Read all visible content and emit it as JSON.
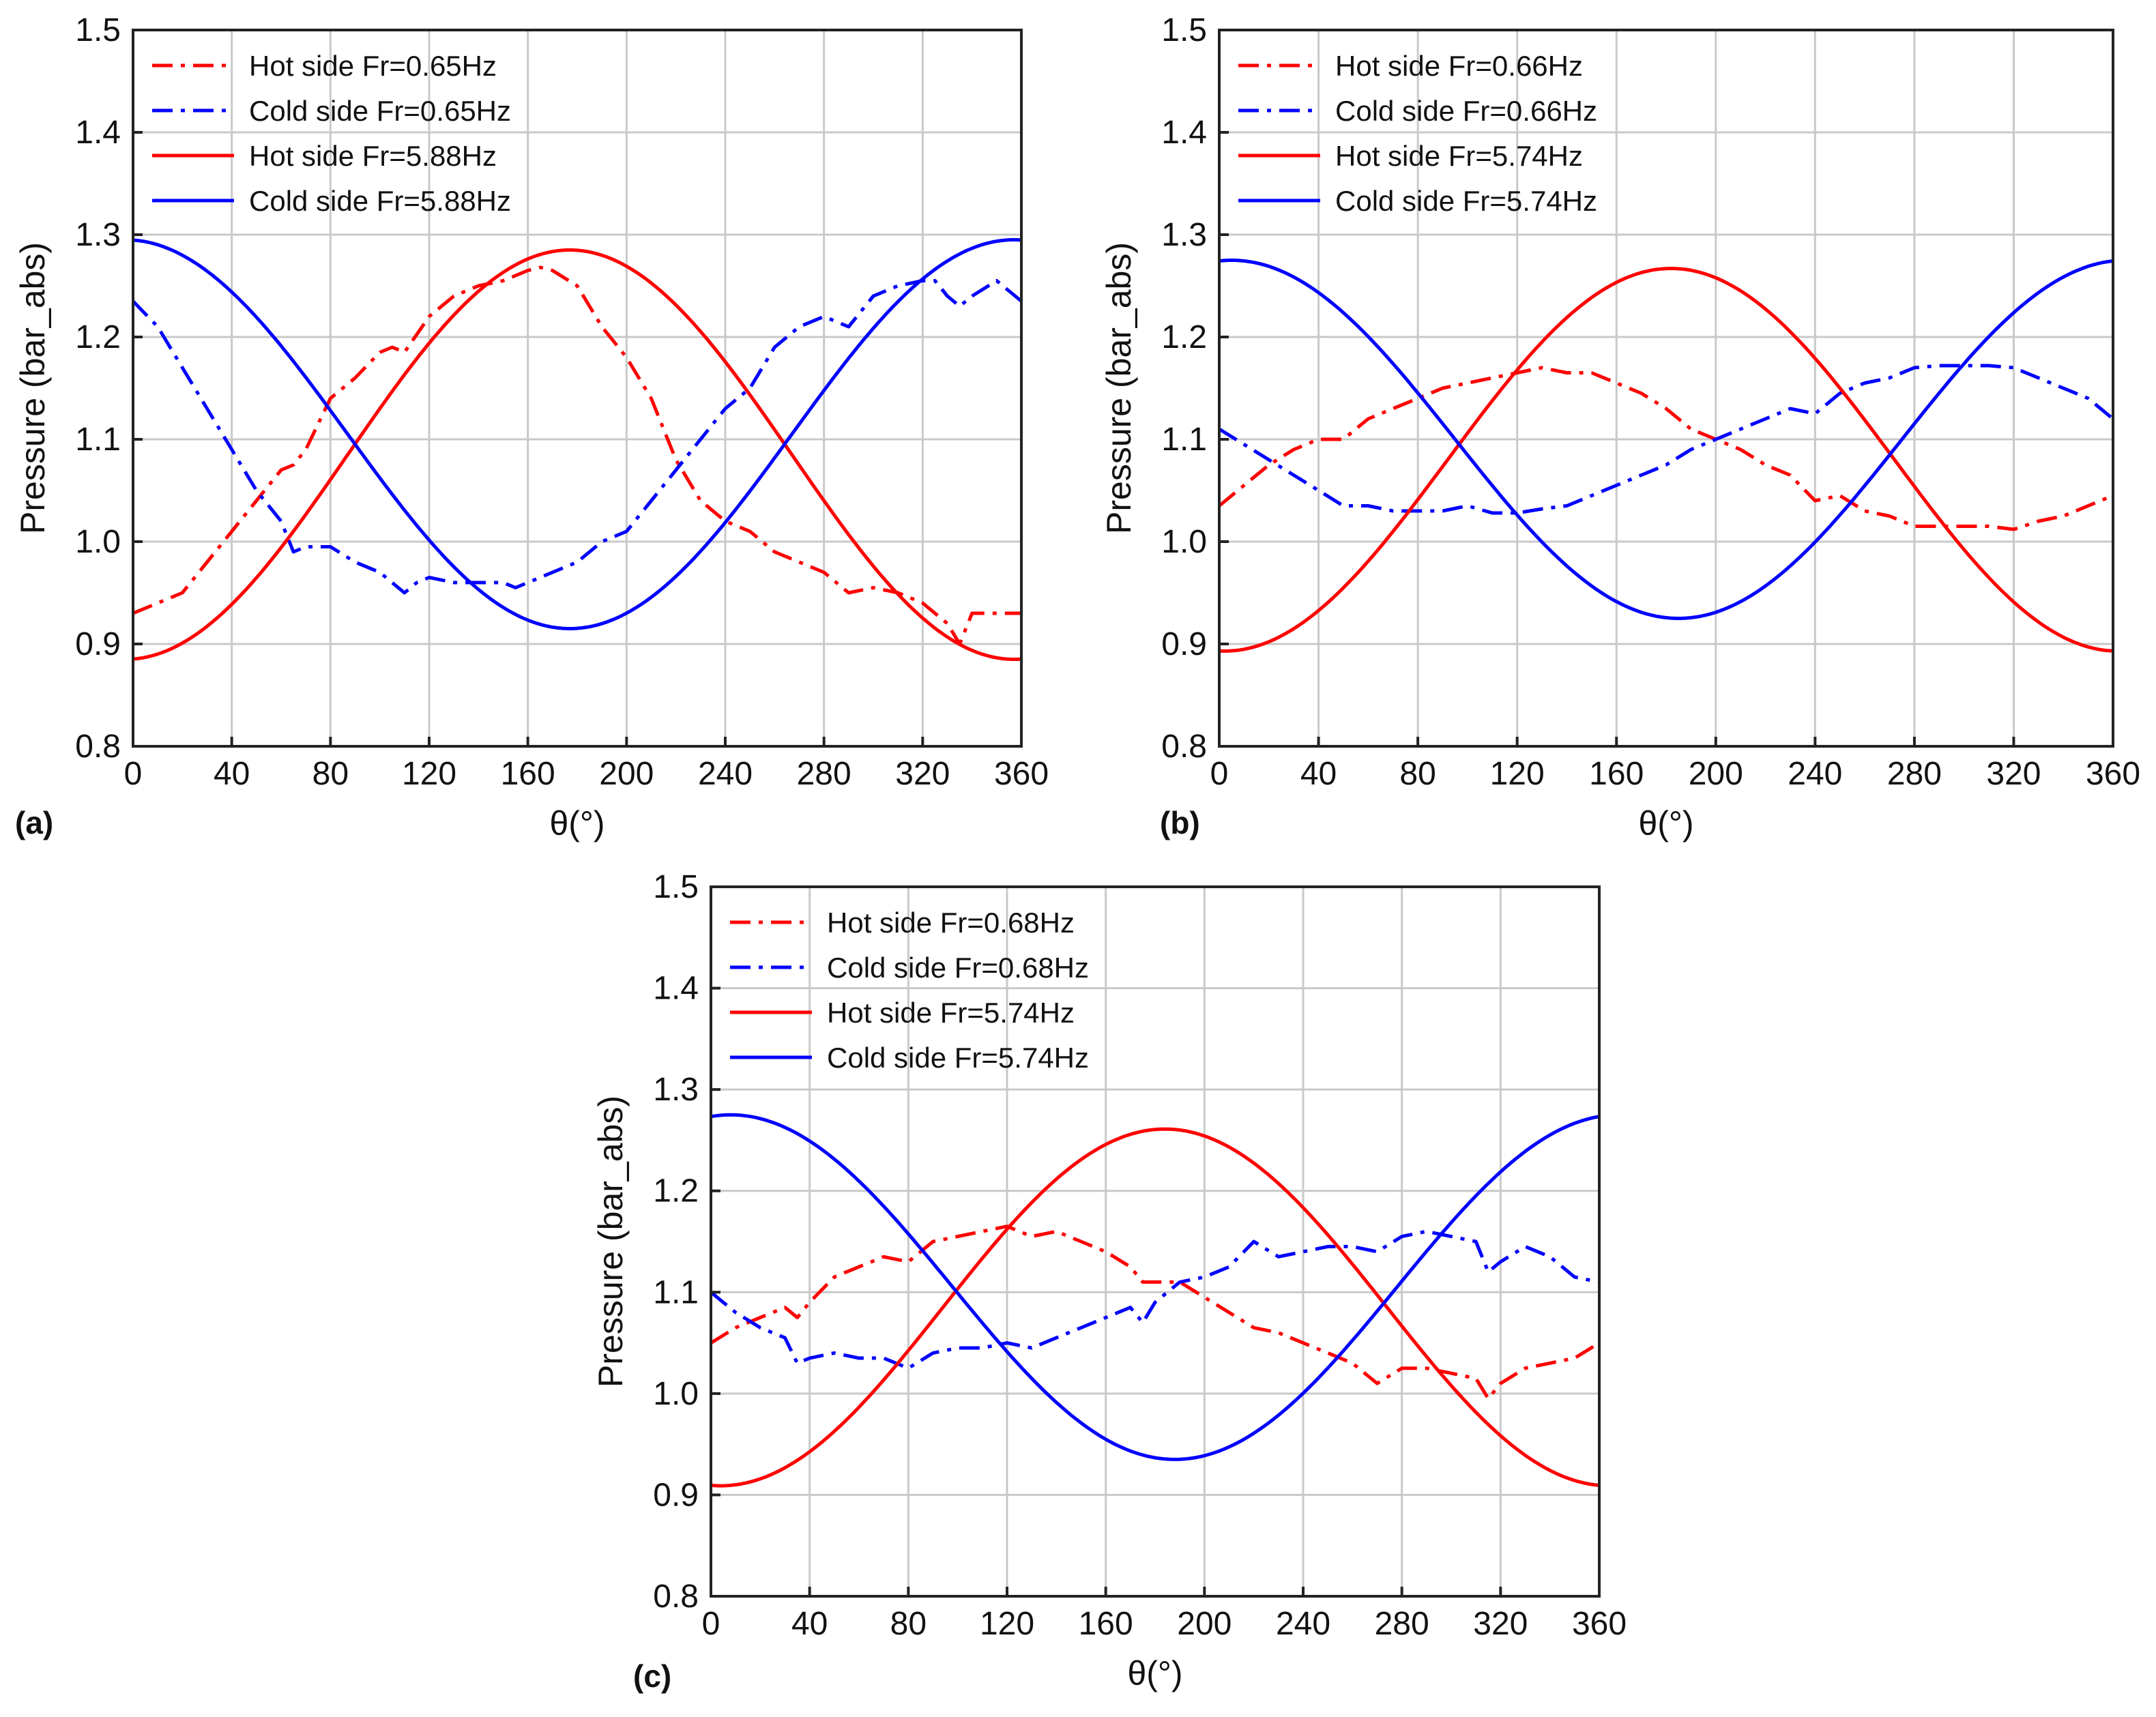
{
  "chart_data": [
    {
      "panel_label": "(a)",
      "type": "line",
      "xlabel": "θ(°)",
      "ylabel": "Pressure (bar_abs)",
      "xlim": [
        0,
        360
      ],
      "ylim": [
        0.8,
        1.5
      ],
      "xticks": [
        "0",
        "40",
        "80",
        "120",
        "160",
        "200",
        "240",
        "280",
        "320",
        "360"
      ],
      "yticks": [
        "0.8",
        "0.9",
        "1.0",
        "1.1",
        "1.2",
        "1.3",
        "1.4",
        "1.5"
      ],
      "grid": true,
      "legend_position": "top-left",
      "series": [
        {
          "name": "Hot side Fr=0.65Hz",
          "color": "#ff0000",
          "style": "dash-dot",
          "x": [
            0,
            10,
            20,
            30,
            40,
            50,
            60,
            65,
            70,
            80,
            90,
            100,
            105,
            110,
            120,
            130,
            140,
            150,
            155,
            160,
            165,
            170,
            180,
            190,
            200,
            210,
            220,
            230,
            240,
            250,
            260,
            270,
            280,
            290,
            300,
            310,
            320,
            330,
            335,
            340,
            350,
            360
          ],
          "y": [
            0.93,
            0.94,
            0.95,
            0.98,
            1.01,
            1.04,
            1.07,
            1.075,
            1.09,
            1.14,
            1.16,
            1.185,
            1.19,
            1.185,
            1.22,
            1.24,
            1.25,
            1.255,
            1.26,
            1.265,
            1.268,
            1.265,
            1.25,
            1.21,
            1.18,
            1.14,
            1.08,
            1.04,
            1.02,
            1.01,
            0.99,
            0.98,
            0.97,
            0.95,
            0.955,
            0.95,
            0.94,
            0.92,
            0.9,
            0.93,
            0.93,
            0.93
          ]
        },
        {
          "name": "Cold side Fr=0.65Hz",
          "color": "#0000ff",
          "style": "dash-dot",
          "x": [
            0,
            10,
            20,
            30,
            40,
            50,
            60,
            65,
            70,
            80,
            90,
            100,
            110,
            115,
            120,
            130,
            140,
            150,
            155,
            160,
            170,
            180,
            190,
            200,
            210,
            220,
            230,
            240,
            250,
            260,
            270,
            280,
            290,
            300,
            310,
            320,
            325,
            330,
            335,
            340,
            350,
            360
          ],
          "y": [
            1.235,
            1.21,
            1.17,
            1.13,
            1.09,
            1.05,
            1.02,
            0.99,
            0.995,
            0.995,
            0.98,
            0.97,
            0.95,
            0.96,
            0.965,
            0.96,
            0.96,
            0.96,
            0.955,
            0.96,
            0.97,
            0.98,
            1.0,
            1.01,
            1.04,
            1.07,
            1.1,
            1.13,
            1.15,
            1.19,
            1.21,
            1.22,
            1.21,
            1.24,
            1.25,
            1.255,
            1.255,
            1.24,
            1.23,
            1.24,
            1.255,
            1.235
          ]
        },
        {
          "name": "Hot side Fr=5.88Hz",
          "color": "#ff0000",
          "style": "solid",
          "curve": {
            "mean": 1.085,
            "amplitude": 0.2,
            "phase_deg": 3
          },
          "x": [
            0,
            360
          ],
          "y": [
            0.885,
            0.899
          ]
        },
        {
          "name": "Cold side Fr=5.88Hz",
          "color": "#0000ff",
          "style": "solid",
          "curve": {
            "mean": 1.105,
            "amplitude": 0.19,
            "phase_deg": 3
          },
          "x": [
            0,
            360
          ],
          "y": [
            1.295,
            1.3
          ]
        }
      ]
    },
    {
      "panel_label": "(b)",
      "type": "line",
      "xlabel": "θ(°)",
      "ylabel": "Pressure (bar_abs)",
      "xlim": [
        0,
        360
      ],
      "ylim": [
        0.8,
        1.5
      ],
      "xticks": [
        "0",
        "40",
        "80",
        "120",
        "160",
        "200",
        "240",
        "280",
        "320",
        "360"
      ],
      "yticks": [
        "0.8",
        "0.9",
        "1.0",
        "1.1",
        "1.2",
        "1.3",
        "1.4",
        "1.5"
      ],
      "grid": true,
      "legend_position": "top-left",
      "series": [
        {
          "name": "Hot side Fr=0.66Hz",
          "color": "#ff0000",
          "style": "dash-dot",
          "x": [
            0,
            10,
            20,
            30,
            40,
            50,
            60,
            70,
            80,
            90,
            100,
            110,
            120,
            130,
            140,
            150,
            160,
            170,
            180,
            190,
            200,
            210,
            220,
            230,
            240,
            250,
            260,
            270,
            280,
            290,
            300,
            310,
            320,
            330,
            340,
            350,
            360
          ],
          "y": [
            1.035,
            1.055,
            1.075,
            1.09,
            1.1,
            1.1,
            1.12,
            1.13,
            1.14,
            1.15,
            1.155,
            1.16,
            1.165,
            1.17,
            1.165,
            1.165,
            1.155,
            1.145,
            1.13,
            1.11,
            1.1,
            1.09,
            1.075,
            1.065,
            1.04,
            1.045,
            1.03,
            1.025,
            1.015,
            1.015,
            1.015,
            1.015,
            1.012,
            1.02,
            1.025,
            1.035,
            1.045
          ]
        },
        {
          "name": "Cold side Fr=0.66Hz",
          "color": "#0000ff",
          "style": "dash-dot",
          "x": [
            0,
            10,
            20,
            30,
            40,
            50,
            60,
            70,
            80,
            90,
            100,
            110,
            120,
            130,
            140,
            150,
            160,
            170,
            180,
            190,
            200,
            210,
            220,
            230,
            240,
            250,
            260,
            270,
            280,
            290,
            300,
            310,
            320,
            330,
            340,
            350,
            360
          ],
          "y": [
            1.11,
            1.095,
            1.08,
            1.065,
            1.05,
            1.035,
            1.035,
            1.03,
            1.03,
            1.03,
            1.035,
            1.028,
            1.028,
            1.032,
            1.035,
            1.045,
            1.055,
            1.065,
            1.075,
            1.09,
            1.1,
            1.11,
            1.12,
            1.13,
            1.125,
            1.145,
            1.155,
            1.16,
            1.17,
            1.172,
            1.172,
            1.172,
            1.17,
            1.16,
            1.15,
            1.14,
            1.12
          ]
        },
        {
          "name": "Hot side Fr=5.74Hz",
          "color": "#ff0000",
          "style": "solid",
          "curve": {
            "mean": 1.08,
            "amplitude": 0.187,
            "phase_deg": -2
          },
          "x": [
            0,
            360
          ],
          "y": [
            0.893,
            0.905
          ]
        },
        {
          "name": "Cold side Fr=5.74Hz",
          "color": "#0000ff",
          "style": "solid",
          "curve": {
            "mean": 1.1,
            "amplitude": 0.175,
            "phase_deg": -5
          },
          "x": [
            0,
            360
          ],
          "y": [
            1.27,
            1.285
          ]
        }
      ]
    },
    {
      "panel_label": "(c)",
      "type": "line",
      "xlabel": "θ(°)",
      "ylabel": "Pressure (bar_abs)",
      "xlim": [
        0,
        360
      ],
      "ylim": [
        0.8,
        1.5
      ],
      "xticks": [
        "0",
        "40",
        "80",
        "120",
        "160",
        "200",
        "240",
        "280",
        "320",
        "360"
      ],
      "yticks": [
        "0.8",
        "0.9",
        "1.0",
        "1.1",
        "1.2",
        "1.3",
        "1.4",
        "1.5"
      ],
      "grid": true,
      "legend_position": "top-left",
      "series": [
        {
          "name": "Hot side Fr=0.68Hz",
          "color": "#ff0000",
          "style": "dash-dot",
          "x": [
            0,
            10,
            20,
            30,
            35,
            40,
            50,
            60,
            70,
            80,
            90,
            100,
            110,
            120,
            130,
            140,
            150,
            160,
            170,
            175,
            180,
            190,
            200,
            210,
            220,
            230,
            240,
            250,
            260,
            270,
            280,
            290,
            300,
            310,
            315,
            320,
            330,
            340,
            350,
            360
          ],
          "y": [
            1.05,
            1.065,
            1.075,
            1.085,
            1.075,
            1.09,
            1.115,
            1.125,
            1.135,
            1.13,
            1.15,
            1.155,
            1.16,
            1.165,
            1.155,
            1.16,
            1.15,
            1.14,
            1.125,
            1.11,
            1.11,
            1.11,
            1.095,
            1.08,
            1.065,
            1.06,
            1.05,
            1.04,
            1.03,
            1.01,
            1.025,
            1.025,
            1.02,
            1.015,
            0.995,
            1.01,
            1.025,
            1.03,
            1.035,
            1.05
          ]
        },
        {
          "name": "Cold side Fr=0.68Hz",
          "color": "#0000ff",
          "style": "dash-dot",
          "x": [
            0,
            10,
            20,
            30,
            35,
            40,
            50,
            60,
            70,
            80,
            90,
            100,
            110,
            120,
            130,
            140,
            150,
            160,
            170,
            175,
            180,
            190,
            200,
            210,
            220,
            230,
            240,
            250,
            260,
            270,
            280,
            290,
            300,
            310,
            315,
            320,
            330,
            340,
            350,
            360
          ],
          "y": [
            1.1,
            1.08,
            1.065,
            1.055,
            1.03,
            1.035,
            1.04,
            1.035,
            1.035,
            1.025,
            1.04,
            1.045,
            1.045,
            1.05,
            1.045,
            1.055,
            1.065,
            1.075,
            1.085,
            1.07,
            1.09,
            1.11,
            1.115,
            1.125,
            1.15,
            1.135,
            1.14,
            1.145,
            1.145,
            1.14,
            1.155,
            1.16,
            1.155,
            1.15,
            1.12,
            1.13,
            1.145,
            1.135,
            1.115,
            1.11
          ]
        },
        {
          "name": "Hot side Fr=5.74Hz",
          "color": "#ff0000",
          "style": "solid",
          "curve": {
            "mean": 1.085,
            "amplitude": 0.176,
            "phase_deg": -4
          },
          "x": [
            0,
            360
          ],
          "y": [
            0.905,
            0.918
          ]
        },
        {
          "name": "Cold side Fr=5.74Hz",
          "color": "#0000ff",
          "style": "solid",
          "curve": {
            "mean": 1.105,
            "amplitude": 0.17,
            "phase_deg": -8
          },
          "x": [
            0,
            360
          ],
          "y": [
            1.27,
            1.282
          ]
        }
      ]
    }
  ]
}
